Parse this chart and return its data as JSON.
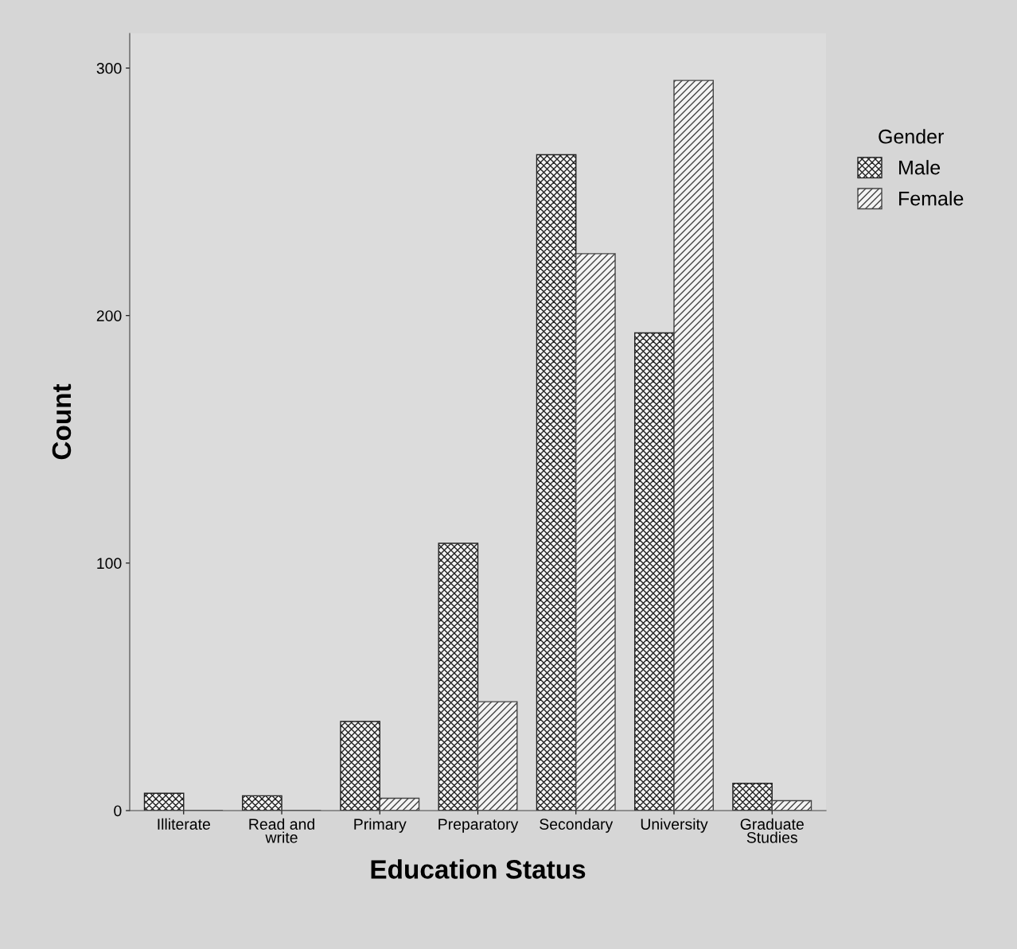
{
  "chart_data": {
    "type": "bar",
    "xlabel": "Education Status",
    "ylabel": "Count",
    "legend_title": "Gender",
    "categories": [
      "Illiterate",
      "Read and\nwrite",
      "Primary",
      "Preparatory",
      "Secondary",
      "University",
      "Graduate\nStudies"
    ],
    "series": [
      {
        "name": "Male",
        "color": "#222222",
        "values": [
          7,
          6,
          36,
          108,
          265,
          193,
          11
        ]
      },
      {
        "name": "Female",
        "color": "#444444",
        "values": [
          0,
          0,
          5,
          44,
          225,
          295,
          4
        ]
      }
    ],
    "ylim": [
      0,
      314
    ],
    "yticks": [
      0,
      100,
      200,
      300
    ],
    "grid": false,
    "legend": "top right"
  }
}
